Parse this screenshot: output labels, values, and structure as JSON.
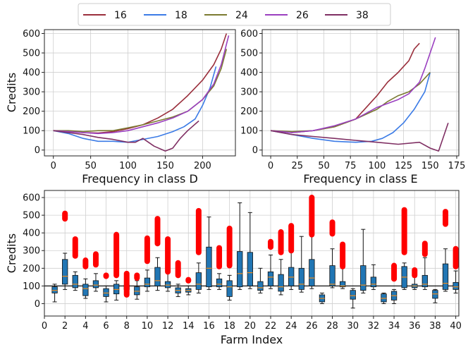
{
  "chart_data": [
    {
      "type": "line",
      "legend": {
        "placement": "top-center",
        "entries": [
          {
            "name": "16",
            "color": "#9a2f3c"
          },
          {
            "name": "18",
            "color": "#3b7be6"
          },
          {
            "name": "24",
            "color": "#7b7a31"
          },
          {
            "name": "26",
            "color": "#9a3fc0"
          },
          {
            "name": "38",
            "color": "#7f2f63"
          }
        ]
      }
    },
    {
      "type": "line",
      "xlabel": "Frequency in class D",
      "ylabel": "Credits",
      "xlim": [
        -12,
        244
      ],
      "ylim": [
        -30,
        620
      ],
      "xticks": [
        0,
        50,
        100,
        150,
        200
      ],
      "yticks": [
        0,
        100,
        200,
        300,
        400,
        500,
        600
      ],
      "grid": true,
      "series": [
        {
          "name": "16",
          "color": "#9a2f3c",
          "x": [
            0,
            20,
            40,
            60,
            80,
            100,
            120,
            140,
            160,
            180,
            200,
            215,
            225,
            232
          ],
          "y": [
            100,
            95,
            90,
            88,
            95,
            110,
            130,
            165,
            210,
            280,
            360,
            440,
            520,
            600
          ]
        },
        {
          "name": "18",
          "color": "#3b7be6",
          "x": [
            0,
            20,
            40,
            60,
            80,
            100,
            120,
            140,
            160,
            175,
            190,
            200,
            210,
            218
          ],
          "y": [
            100,
            85,
            60,
            45,
            45,
            40,
            55,
            70,
            95,
            120,
            160,
            230,
            320,
            430
          ]
        },
        {
          "name": "24",
          "color": "#7b7a31",
          "x": [
            0,
            20,
            40,
            60,
            80,
            100,
            120,
            140,
            160,
            180,
            200,
            215,
            225,
            232
          ],
          "y": [
            100,
            100,
            95,
            100,
            100,
            115,
            130,
            150,
            170,
            200,
            260,
            330,
            420,
            520
          ]
        },
        {
          "name": "26",
          "color": "#9a3fc0",
          "x": [
            0,
            20,
            40,
            60,
            80,
            100,
            120,
            140,
            160,
            180,
            200,
            215,
            225,
            235
          ],
          "y": [
            100,
            95,
            90,
            85,
            90,
            100,
            120,
            140,
            165,
            200,
            260,
            340,
            440,
            590
          ]
        },
        {
          "name": "38",
          "color": "#7f2f63",
          "x": [
            0,
            20,
            40,
            60,
            80,
            100,
            110,
            120,
            135,
            150,
            160,
            170,
            180,
            195
          ],
          "y": [
            100,
            90,
            80,
            65,
            55,
            40,
            40,
            60,
            20,
            -5,
            10,
            60,
            100,
            150
          ]
        }
      ]
    },
    {
      "type": "line",
      "xlabel": "Frequency in class E",
      "ylabel": "",
      "xlim": [
        -8,
        177
      ],
      "ylim": [
        -30,
        620
      ],
      "xticks": [
        0,
        25,
        50,
        75,
        100,
        125,
        150,
        175
      ],
      "yticks": [
        0,
        100,
        200,
        300,
        400,
        500,
        600
      ],
      "grid": true,
      "series": [
        {
          "name": "16",
          "color": "#9a2f3c",
          "x": [
            0,
            20,
            40,
            60,
            80,
            90,
            100,
            110,
            120,
            130,
            135,
            140
          ],
          "y": [
            100,
            90,
            100,
            120,
            160,
            220,
            280,
            350,
            400,
            460,
            520,
            550
          ]
        },
        {
          "name": "18",
          "color": "#3b7be6",
          "x": [
            0,
            20,
            40,
            60,
            80,
            95,
            105,
            115,
            125,
            135,
            145,
            150
          ],
          "y": [
            100,
            80,
            60,
            45,
            40,
            45,
            60,
            90,
            140,
            210,
            300,
            400
          ]
        },
        {
          "name": "24",
          "color": "#7b7a31",
          "x": [
            0,
            20,
            40,
            60,
            80,
            100,
            110,
            120,
            130,
            140,
            150
          ],
          "y": [
            100,
            95,
            100,
            120,
            160,
            210,
            250,
            280,
            300,
            340,
            400
          ]
        },
        {
          "name": "26",
          "color": "#9a3fc0",
          "x": [
            0,
            20,
            40,
            60,
            80,
            100,
            120,
            130,
            140,
            145,
            150,
            155
          ],
          "y": [
            100,
            90,
            100,
            125,
            160,
            220,
            260,
            290,
            350,
            420,
            500,
            580
          ]
        },
        {
          "name": "38",
          "color": "#7f2f63",
          "x": [
            0,
            20,
            40,
            60,
            80,
            100,
            120,
            140,
            150,
            158,
            162,
            167
          ],
          "y": [
            100,
            80,
            70,
            60,
            50,
            40,
            30,
            40,
            10,
            -5,
            60,
            140
          ]
        }
      ]
    },
    {
      "type": "boxplot",
      "xlabel": "Farm Index",
      "ylabel": "Credits",
      "xlim": [
        0,
        40.3
      ],
      "ylim": [
        -70,
        640
      ],
      "xticks": [
        0,
        2,
        4,
        6,
        8,
        10,
        12,
        14,
        16,
        18,
        20,
        22,
        24,
        26,
        28,
        30,
        32,
        34,
        36,
        38,
        40
      ],
      "yticks": [
        0,
        100,
        200,
        300,
        400,
        500,
        600
      ],
      "grid": true,
      "baseline": 100,
      "boxes": [
        {
          "x": 1,
          "whislo": 10,
          "q1": 60,
          "med": 75,
          "q3": 95,
          "whishi": 110,
          "outliers": []
        },
        {
          "x": 2,
          "whislo": 80,
          "q1": 110,
          "med": 155,
          "q3": 250,
          "whishi": 285,
          "outliers": [
            480,
            510
          ]
        },
        {
          "x": 3,
          "whislo": 75,
          "q1": 90,
          "med": 110,
          "q3": 160,
          "whishi": 180,
          "outliers": [
            270,
            365
          ]
        },
        {
          "x": 4,
          "whislo": 30,
          "q1": 45,
          "med": 85,
          "q3": 110,
          "whishi": 140,
          "outliers": [
            210,
            245
          ]
        },
        {
          "x": 5,
          "whislo": 70,
          "q1": 90,
          "med": 105,
          "q3": 130,
          "whishi": 170,
          "outliers": [
            220,
            280
          ]
        },
        {
          "x": 6,
          "whislo": 10,
          "q1": 40,
          "med": 60,
          "q3": 85,
          "whishi": 100,
          "outliers": [
            155,
            160
          ]
        },
        {
          "x": 7,
          "whislo": 20,
          "q1": 55,
          "med": 80,
          "q3": 110,
          "whishi": 130,
          "outliers": [
            160,
            390
          ]
        },
        {
          "x": 8,
          "whislo": 60,
          "q1": 80,
          "med": 90,
          "q3": 105,
          "whishi": 140,
          "outliers": [
            50,
            170
          ]
        },
        {
          "x": 9,
          "whislo": 25,
          "q1": 50,
          "med": 70,
          "q3": 95,
          "whishi": 130,
          "outliers": [
            145,
            160
          ]
        },
        {
          "x": 10,
          "whislo": 70,
          "q1": 95,
          "med": 110,
          "q3": 145,
          "whishi": 190,
          "outliers": [
            240,
            370
          ]
        },
        {
          "x": 11,
          "whislo": 75,
          "q1": 100,
          "med": 130,
          "q3": 205,
          "whishi": 260,
          "outliers": [
            340,
            480
          ]
        },
        {
          "x": 12,
          "whislo": 70,
          "q1": 90,
          "med": 105,
          "q3": 125,
          "whishi": 180,
          "outliers": [
            180,
            365
          ]
        },
        {
          "x": 13,
          "whislo": 40,
          "q1": 60,
          "med": 75,
          "q3": 90,
          "whishi": 110,
          "outliers": [
            160,
            230
          ]
        },
        {
          "x": 14,
          "whislo": 50,
          "q1": 65,
          "med": 75,
          "q3": 85,
          "whishi": 100,
          "outliers": [
            130,
            135
          ]
        },
        {
          "x": 15,
          "whislo": 60,
          "q1": 80,
          "med": 110,
          "q3": 175,
          "whishi": 230,
          "outliers": [
            290,
            525
          ]
        },
        {
          "x": 16,
          "whislo": 80,
          "q1": 95,
          "med": 200,
          "q3": 320,
          "whishi": 490,
          "outliers": []
        },
        {
          "x": 17,
          "whislo": 80,
          "q1": 95,
          "med": 110,
          "q3": 140,
          "whishi": 170,
          "outliers": [
            210,
            315
          ]
        },
        {
          "x": 18,
          "whislo": 20,
          "q1": 40,
          "med": 95,
          "q3": 130,
          "whishi": 160,
          "outliers": [
            215,
            425
          ]
        },
        {
          "x": 19,
          "whislo": 80,
          "q1": 95,
          "med": 170,
          "q3": 295,
          "whishi": 570,
          "outliers": []
        },
        {
          "x": 20,
          "whislo": 85,
          "q1": 100,
          "med": 175,
          "q3": 290,
          "whishi": 515,
          "outliers": []
        },
        {
          "x": 21,
          "whislo": 60,
          "q1": 75,
          "med": 90,
          "q3": 125,
          "whishi": 200,
          "outliers": []
        },
        {
          "x": 22,
          "whislo": 85,
          "q1": 100,
          "med": 150,
          "q3": 180,
          "whishi": 275,
          "outliers": [
            320,
            350
          ]
        },
        {
          "x": 23,
          "whislo": 50,
          "q1": 70,
          "med": 95,
          "q3": 165,
          "whishi": 250,
          "outliers": [
            290,
            405
          ]
        },
        {
          "x": 24,
          "whislo": 80,
          "q1": 100,
          "med": 150,
          "q3": 205,
          "whishi": 295,
          "outliers": [
            300,
            440
          ]
        },
        {
          "x": 25,
          "whislo": 65,
          "q1": 80,
          "med": 110,
          "q3": 200,
          "whishi": 380,
          "outliers": []
        },
        {
          "x": 26,
          "whislo": 85,
          "q1": 100,
          "med": 145,
          "q3": 250,
          "whishi": 390,
          "outliers": [
            390,
            600
          ]
        },
        {
          "x": 27,
          "whislo": 0,
          "q1": 10,
          "med": 30,
          "q3": 50,
          "whishi": 60,
          "outliers": []
        },
        {
          "x": 28,
          "whislo": 90,
          "q1": 100,
          "med": 110,
          "q3": 215,
          "whishi": 310,
          "outliers": [
            395,
            460
          ]
        },
        {
          "x": 29,
          "whislo": 85,
          "q1": 95,
          "med": 100,
          "q3": 125,
          "whishi": 200,
          "outliers": [
            210,
            335
          ]
        },
        {
          "x": 30,
          "whislo": -25,
          "q1": 25,
          "med": 45,
          "q3": 75,
          "whishi": 85,
          "outliers": []
        },
        {
          "x": 31,
          "whislo": 60,
          "q1": 75,
          "med": 105,
          "q3": 215,
          "whishi": 420,
          "outliers": []
        },
        {
          "x": 32,
          "whislo": 80,
          "q1": 95,
          "med": 110,
          "q3": 150,
          "whishi": 220,
          "outliers": []
        },
        {
          "x": 33,
          "whislo": 0,
          "q1": 10,
          "med": 30,
          "q3": 55,
          "whishi": 60,
          "outliers": []
        },
        {
          "x": 34,
          "whislo": 0,
          "q1": 20,
          "med": 45,
          "q3": 70,
          "whishi": 80,
          "outliers": [
            140,
            215
          ]
        },
        {
          "x": 35,
          "whislo": 80,
          "q1": 90,
          "med": 150,
          "q3": 210,
          "whishi": 230,
          "outliers": [
            290,
            530
          ]
        },
        {
          "x": 36,
          "whislo": 80,
          "q1": 90,
          "med": 100,
          "q3": 110,
          "whishi": 150,
          "outliers": [
            160,
            190
          ]
        },
        {
          "x": 37,
          "whislo": 80,
          "q1": 95,
          "med": 110,
          "q3": 160,
          "whishi": 260,
          "outliers": [
            280,
            340
          ]
        },
        {
          "x": 38,
          "whislo": 5,
          "q1": 30,
          "med": 55,
          "q3": 75,
          "whishi": 80,
          "outliers": []
        },
        {
          "x": 39,
          "whislo": 70,
          "q1": 80,
          "med": 115,
          "q3": 225,
          "whishi": 310,
          "outliers": [
            450,
            520
          ]
        },
        {
          "x": 40,
          "whislo": 60,
          "q1": 80,
          "med": 95,
          "q3": 120,
          "whishi": 185,
          "outliers": [
            210,
            310
          ]
        }
      ]
    }
  ]
}
